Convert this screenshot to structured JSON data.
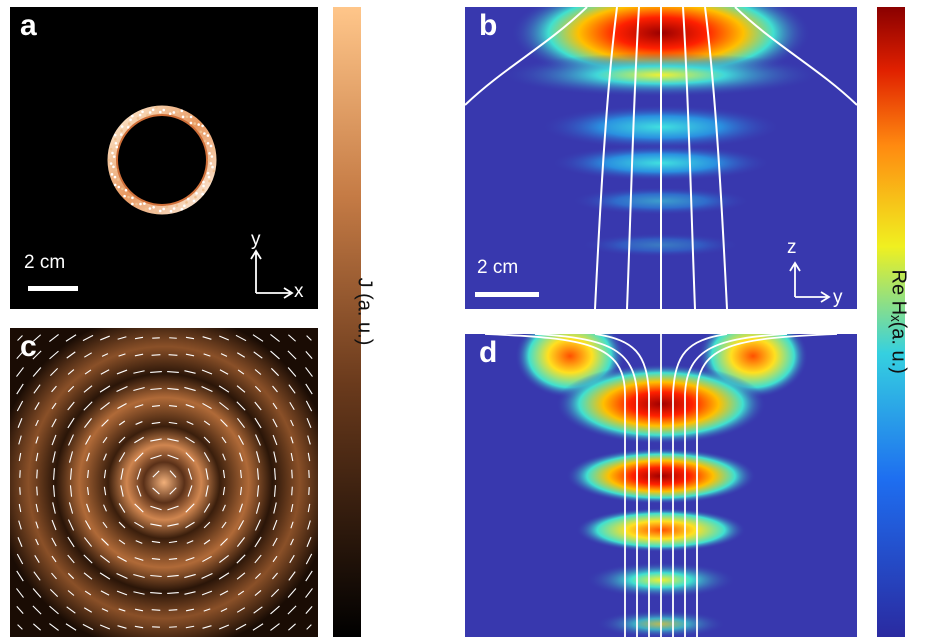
{
  "panels": {
    "a": {
      "label": "a",
      "scale": "2 cm",
      "axis_v": "y",
      "axis_h": "x"
    },
    "b": {
      "label": "b",
      "scale": "2 cm",
      "axis_v": "z",
      "axis_h": "y"
    },
    "c": {
      "label": "c"
    },
    "d": {
      "label": "d"
    }
  },
  "colorbars": {
    "current": {
      "title": "J (a. u.)",
      "colormap": "copper",
      "colors": [
        "#000000",
        "#ffc68a"
      ]
    },
    "field": {
      "title": "Re Hₓ(a. u.)",
      "colormap": "jet",
      "colors": [
        "#2a2aa0",
        "#1e90ff",
        "#35d0e0",
        "#f0f020",
        "#ff8a10",
        "#b00000"
      ]
    }
  }
}
